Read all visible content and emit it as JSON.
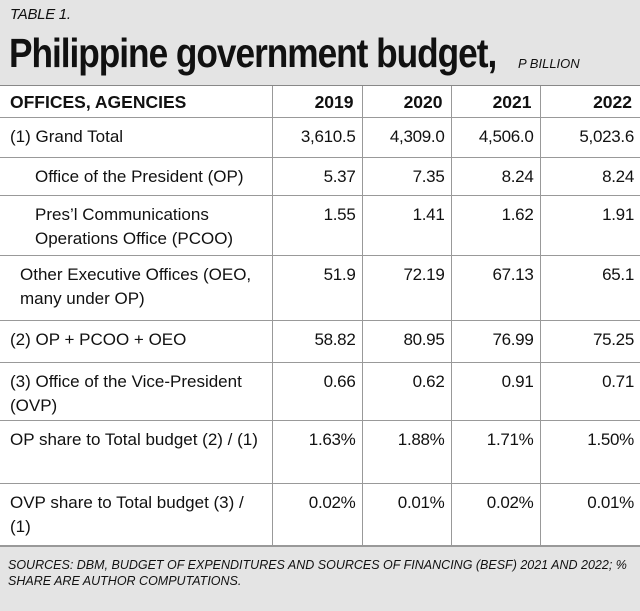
{
  "header": {
    "label": "TABLE 1.",
    "title": "Philippine government budget,",
    "unit": "P BILLION"
  },
  "table": {
    "columns": [
      "OFFICES, AGENCIES",
      "2019",
      "2020",
      "2021",
      "2022"
    ],
    "rows": [
      [
        "(1) Grand Total",
        "3,610.5",
        "4,309.0",
        "4,506.0",
        "5,023.6"
      ],
      [
        "Office of the President (OP)",
        "5.37",
        "7.35",
        "8.24",
        "8.24"
      ],
      [
        "Pres’l Communications Operations Office (PCOO)",
        "1.55",
        "1.41",
        "1.62",
        "1.91"
      ],
      [
        "Other Executive Offices (OEO, many under OP)",
        "51.9",
        "72.19",
        "67.13",
        "65.1"
      ],
      [
        "(2) OP + PCOO + OEO",
        "58.82",
        "80.95",
        "76.99",
        "75.25"
      ],
      [
        "(3) Office of the Vice-President (OVP)",
        "0.66",
        "0.62",
        "0.91",
        "0.71"
      ],
      [
        "OP share to Total budget (2) / (1)",
        "1.63%",
        "1.88%",
        "1.71%",
        "1.50%"
      ],
      [
        "OVP share to Total budget (3) / (1)",
        "0.02%",
        "0.01%",
        "0.02%",
        "0.01%"
      ]
    ]
  },
  "footer": "SOURCES: DBM, BUDGET OF EXPENDITURES AND SOURCES OF FINANCING (BESF) 2021 AND 2022; % SHARE ARE AUTHOR COMPUTATIONS."
}
